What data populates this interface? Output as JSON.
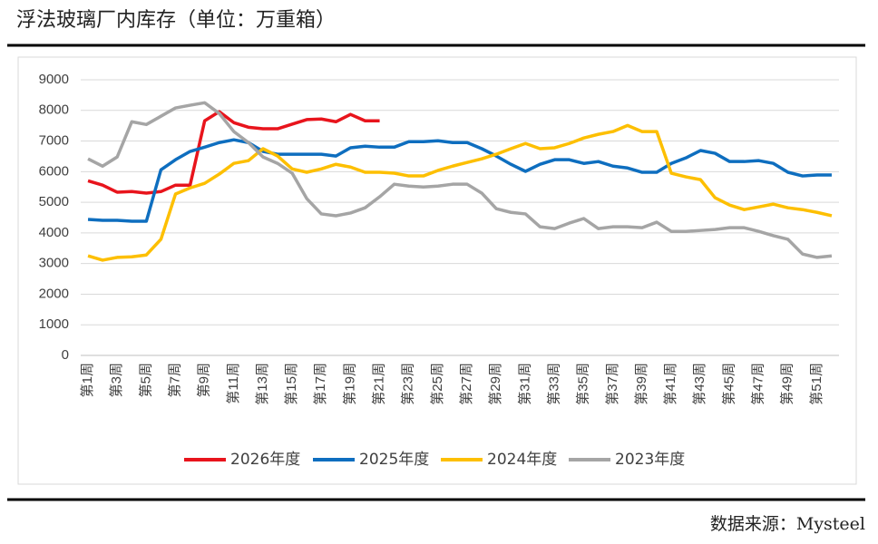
{
  "header": {
    "title": "浮法玻璃厂内库存（单位：万重箱）"
  },
  "chart_data": {
    "type": "line",
    "categories": [
      "第1周",
      null,
      "第3周",
      null,
      "第5周",
      null,
      "第7周",
      null,
      "第9周",
      null,
      "第11周",
      null,
      "第13周",
      null,
      "第15周",
      null,
      "第17周",
      null,
      "第19周",
      null,
      "第21周",
      null,
      "第23周",
      null,
      "第25周",
      null,
      "第27周",
      null,
      "第29周",
      null,
      "第31周",
      null,
      "第33周",
      null,
      "第35周",
      null,
      "第37周",
      null,
      "第39周",
      null,
      "第41周",
      null,
      "第43周",
      null,
      "第45周",
      null,
      "第47周",
      null,
      "第49周",
      null,
      "第51周",
      null
    ],
    "ylim": [
      0,
      9000
    ],
    "yticks": [
      0,
      1000,
      2000,
      3000,
      4000,
      5000,
      6000,
      7000,
      8000,
      9000
    ],
    "grid": true,
    "legend": "bottom",
    "series": [
      {
        "name": "2026年度",
        "color": "#e8141c",
        "values": [
          5700,
          5560,
          5330,
          5350,
          5300,
          5350,
          5560,
          5560,
          7660,
          7960,
          7600,
          7450,
          7400,
          7400,
          7550,
          7700,
          7720,
          7630,
          7870,
          7660,
          7660,
          null,
          null,
          null,
          null,
          null,
          null,
          null,
          null,
          null,
          null,
          null,
          null,
          null,
          null,
          null,
          null,
          null,
          null,
          null,
          null,
          null,
          null,
          null,
          null,
          null,
          null,
          null,
          null,
          null,
          null,
          null
        ]
      },
      {
        "name": "2025年度",
        "color": "#0e6ebf",
        "values": [
          4440,
          4410,
          4410,
          4380,
          4380,
          6060,
          6390,
          6660,
          6800,
          6950,
          7040,
          6950,
          6660,
          6570,
          6570,
          6570,
          6570,
          6510,
          6780,
          6830,
          6800,
          6800,
          6980,
          6980,
          7010,
          6950,
          6950,
          6750,
          6510,
          6240,
          6010,
          6240,
          6390,
          6390,
          6270,
          6330,
          6180,
          6120,
          5980,
          5980,
          6270,
          6450,
          6690,
          6600,
          6330,
          6330,
          6360,
          6270,
          5980,
          5860,
          5890,
          5890
        ]
      },
      {
        "name": "2024年度",
        "color": "#fdbf00",
        "values": [
          3250,
          3110,
          3200,
          3220,
          3280,
          3790,
          5270,
          5470,
          5620,
          5920,
          6270,
          6360,
          6750,
          6510,
          6090,
          5980,
          6090,
          6240,
          6150,
          5980,
          5980,
          5950,
          5860,
          5860,
          6040,
          6180,
          6300,
          6420,
          6570,
          6750,
          6920,
          6750,
          6780,
          6920,
          7100,
          7220,
          7310,
          7510,
          7310,
          7310,
          5950,
          5830,
          5740,
          5150,
          4910,
          4760,
          4850,
          4940,
          4820,
          4760,
          4670,
          4560
        ]
      },
      {
        "name": "2023年度",
        "color": "#a5a5a5",
        "values": [
          6420,
          6180,
          6480,
          7630,
          7540,
          7810,
          8080,
          8170,
          8250,
          7900,
          7310,
          6950,
          6480,
          6270,
          5950,
          5120,
          4620,
          4560,
          4650,
          4820,
          5180,
          5590,
          5530,
          5500,
          5530,
          5590,
          5590,
          5300,
          4790,
          4670,
          4620,
          4200,
          4140,
          4320,
          4470,
          4140,
          4200,
          4200,
          4170,
          4350,
          4050,
          4050,
          4080,
          4110,
          4170,
          4170,
          4050,
          3910,
          3790,
          3310,
          3200,
          3250
        ]
      }
    ]
  },
  "footer": {
    "source": "数据来源：Mysteel"
  }
}
